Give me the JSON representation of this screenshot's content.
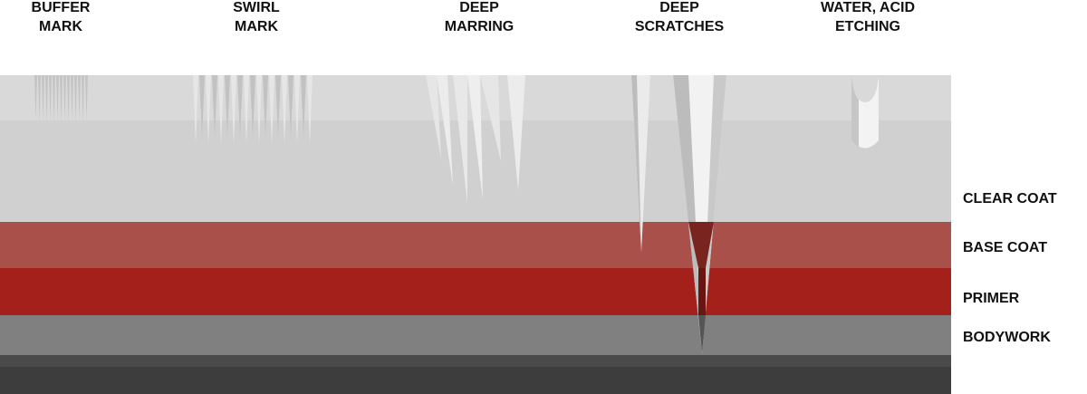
{
  "defects": [
    {
      "label_lines": [
        "BUFFER",
        "MARK"
      ]
    },
    {
      "label_lines": [
        "SWIRL",
        "MARK"
      ]
    },
    {
      "label_lines": [
        "DEEP",
        "MARRING"
      ]
    },
    {
      "label_lines": [
        "DEEP",
        "SCRATCHES"
      ]
    },
    {
      "label_lines": [
        "WATER, ACID",
        "ETCHING"
      ]
    }
  ],
  "layers": [
    {
      "label": "CLEAR COAT"
    },
    {
      "label": "BASE COAT"
    },
    {
      "label": "PRIMER"
    },
    {
      "label": "BODYWORK"
    }
  ]
}
